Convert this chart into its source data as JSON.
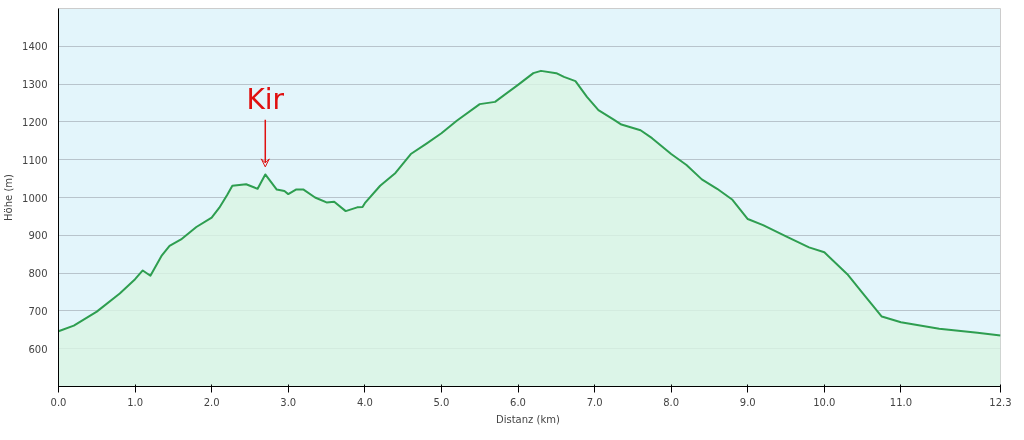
{
  "chart_data": {
    "type": "area",
    "xlabel": "Distanz  (km)",
    "ylabel": "Höhe (m)",
    "xlim": [
      0,
      12.3
    ],
    "ylim": [
      500,
      1500
    ],
    "xticks": [
      {
        "value": 0,
        "label": "0.0"
      },
      {
        "value": 1,
        "label": "1.0"
      },
      {
        "value": 2,
        "label": "2.0"
      },
      {
        "value": 3,
        "label": "3.0"
      },
      {
        "value": 4,
        "label": "4.0"
      },
      {
        "value": 5,
        "label": "5.0"
      },
      {
        "value": 6,
        "label": "6.0"
      },
      {
        "value": 7,
        "label": "7.0"
      },
      {
        "value": 8,
        "label": "8.0"
      },
      {
        "value": 9,
        "label": "9.0"
      },
      {
        "value": 10,
        "label": "10.0"
      },
      {
        "value": 11,
        "label": "11.0"
      },
      {
        "value": 12.3,
        "label": "12.3"
      }
    ],
    "yticks": [
      600,
      700,
      800,
      900,
      1000,
      1100,
      1200,
      1300,
      1400
    ],
    "grid": "y",
    "annotations": [
      {
        "text": "Kir",
        "x": 2.7,
        "y": 1061
      }
    ],
    "series": [
      {
        "color": "#2e9e50",
        "x": [
          0,
          0.2,
          0.5,
          0.8,
          1.0,
          1.1,
          1.2,
          1.35,
          1.45,
          1.6,
          1.8,
          2.0,
          2.1,
          2.2,
          2.27,
          2.45,
          2.6,
          2.7,
          2.85,
          2.95,
          3.0,
          3.1,
          3.2,
          3.35,
          3.5,
          3.6,
          3.75,
          3.9,
          3.97,
          4.0,
          4.2,
          4.4,
          4.6,
          4.8,
          5.0,
          5.2,
          5.5,
          5.7,
          6.0,
          6.2,
          6.3,
          6.5,
          6.6,
          6.75,
          6.9,
          7.05,
          7.25,
          7.35,
          7.6,
          7.75,
          8.0,
          8.2,
          8.4,
          8.6,
          8.8,
          9.0,
          9.2,
          9.5,
          9.8,
          10.0,
          10.3,
          10.5,
          10.75,
          11.0,
          11.5,
          12.0,
          12.3
        ],
        "values": [
          646,
          661,
          698,
          746,
          784,
          807,
          793,
          847,
          872,
          889,
          922,
          947,
          973,
          1006,
          1031,
          1035,
          1023,
          1061,
          1021,
          1017,
          1009,
          1021,
          1021,
          1000,
          987,
          989,
          964,
          974,
          975,
          985,
          1031,
          1065,
          1115,
          1142,
          1170,
          1203,
          1247,
          1253,
          1298,
          1329,
          1335,
          1329,
          1319,
          1308,
          1266,
          1231,
          1206,
          1193,
          1178,
          1157,
          1115,
          1086,
          1048,
          1023,
          994,
          943,
          927,
          897,
          868,
          855,
          797,
          747,
          685,
          670,
          653,
          642,
          635
        ]
      }
    ]
  }
}
